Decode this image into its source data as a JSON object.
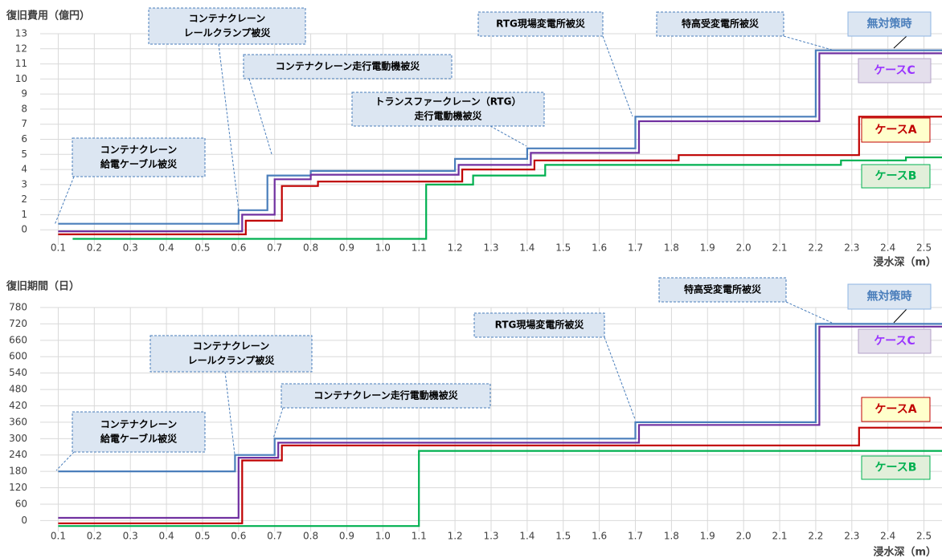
{
  "chart_data": [
    {
      "type": "line",
      "title": "復旧費用（億円）",
      "xlabel": "浸水深（m）",
      "xlim": [
        0.05,
        2.55
      ],
      "ylim": [
        -1,
        13
      ],
      "grid": true,
      "xticks": [
        0.1,
        0.2,
        0.3,
        0.4,
        0.5,
        0.6,
        0.7,
        0.8,
        0.9,
        {
          "value": 1,
          "label": "1.0"
        },
        1.1,
        1.2,
        1.3,
        1.4,
        1.5,
        1.6,
        1.7,
        1.8,
        1.9,
        {
          "value": 2,
          "label": "2.0"
        },
        2.1,
        2.2,
        2.3,
        2.4,
        2.5
      ],
      "yticks": [
        0,
        1,
        2,
        3,
        4,
        5,
        6,
        7,
        8,
        9,
        10,
        11,
        12,
        13
      ],
      "series": [
        {
          "name": "無対策時",
          "color": "#4a7ebb",
          "x": [
            0.1,
            0.6,
            0.6,
            0.68,
            0.68,
            0.8,
            0.8,
            1.2,
            1.2,
            1.4,
            1.4,
            1.7,
            1.7,
            2.2,
            2.2,
            2.55
          ],
          "values": [
            0.4,
            0.4,
            1.3,
            1.3,
            3.6,
            3.6,
            3.9,
            3.9,
            4.7,
            4.7,
            5.4,
            5.4,
            7.5,
            7.5,
            11.9,
            11.9
          ]
        },
        {
          "name": "ケースC",
          "color": "#7030a0",
          "x": [
            0.1,
            0.61,
            0.61,
            0.7,
            0.7,
            0.8,
            0.8,
            1.21,
            1.21,
            1.41,
            1.41,
            1.71,
            1.71,
            2.21,
            2.21,
            2.55
          ],
          "values": [
            -0.1,
            -0.1,
            1.0,
            1.0,
            3.35,
            3.35,
            3.65,
            3.65,
            4.3,
            4.3,
            5.1,
            5.1,
            7.2,
            7.2,
            11.7,
            11.7
          ]
        },
        {
          "name": "ケースA",
          "color": "#c00000",
          "x": [
            0.1,
            0.62,
            0.62,
            0.72,
            0.72,
            0.82,
            0.82,
            1.22,
            1.22,
            1.42,
            1.42,
            1.82,
            1.82,
            2.32,
            2.32,
            2.55
          ],
          "values": [
            -0.3,
            -0.3,
            0.6,
            0.6,
            2.9,
            2.9,
            3.2,
            3.2,
            4.0,
            4.0,
            4.6,
            4.6,
            4.95,
            4.95,
            7.5,
            7.5
          ]
        },
        {
          "name": "ケースB",
          "color": "#00b050",
          "x": [
            0.14,
            1.12,
            1.12,
            1.25,
            1.25,
            1.45,
            1.45,
            2.27,
            2.27,
            2.45,
            2.45,
            2.55
          ],
          "values": [
            -0.6,
            -0.6,
            3.0,
            3.0,
            3.6,
            3.6,
            4.3,
            4.3,
            4.6,
            4.6,
            4.8,
            4.8
          ]
        }
      ],
      "annotations": [
        {
          "lines": [
            "コンテナクレーン",
            "給電ケーブル被災"
          ]
        },
        {
          "lines": [
            "コンテナクレーン",
            "レールクランプ被災"
          ]
        },
        {
          "lines": [
            "コンテナクレーン走行電動機被災"
          ]
        },
        {
          "lines": [
            "トランスファークレーン（RTG）",
            "走行電動機被災"
          ]
        },
        {
          "lines": [
            "RTG現場変電所被災"
          ]
        },
        {
          "lines": [
            "特高受変電所被災"
          ]
        }
      ]
    },
    {
      "type": "line",
      "title": "復旧期間（日）",
      "xlabel": "浸水深（m）",
      "xlim": [
        0.05,
        2.55
      ],
      "ylim": [
        -40,
        780
      ],
      "grid": true,
      "xticks": [
        0.1,
        0.2,
        0.3,
        0.4,
        0.5,
        0.6,
        0.7,
        0.8,
        0.9,
        {
          "value": 1,
          "label": "1.0"
        },
        1.1,
        1.2,
        1.3,
        1.4,
        1.5,
        1.6,
        1.7,
        1.8,
        1.9,
        {
          "value": 2,
          "label": "2.0"
        },
        2.1,
        2.2,
        2.3,
        2.4,
        2.5
      ],
      "yticks": [
        0,
        60,
        120,
        180,
        240,
        300,
        360,
        420,
        480,
        540,
        600,
        660,
        720,
        780
      ],
      "series": [
        {
          "name": "無対策時",
          "color": "#4a7ebb",
          "x": [
            0.1,
            0.59,
            0.59,
            0.7,
            0.7,
            1.7,
            1.7,
            2.2,
            2.2,
            2.55
          ],
          "values": [
            180,
            180,
            240,
            240,
            300,
            300,
            360,
            360,
            720,
            720
          ]
        },
        {
          "name": "ケースC",
          "color": "#7030a0",
          "x": [
            0.1,
            0.6,
            0.6,
            0.71,
            0.71,
            1.71,
            1.71,
            2.21,
            2.21,
            2.55
          ],
          "values": [
            10,
            10,
            230,
            230,
            285,
            285,
            350,
            350,
            710,
            710
          ]
        },
        {
          "name": "ケースA",
          "color": "#c00000",
          "x": [
            0.1,
            0.61,
            0.61,
            0.72,
            0.72,
            2.32,
            2.32,
            2.55
          ],
          "values": [
            -10,
            -10,
            220,
            220,
            275,
            275,
            340,
            340
          ]
        },
        {
          "name": "ケースB",
          "color": "#00b050",
          "x": [
            0.1,
            1.1,
            1.1,
            2.55
          ],
          "values": [
            -20,
            -20,
            255,
            255
          ]
        }
      ],
      "annotations": [
        {
          "lines": [
            "コンテナクレーン",
            "給電ケーブル被災"
          ]
        },
        {
          "lines": [
            "コンテナクレーン",
            "レールクランプ被災"
          ]
        },
        {
          "lines": [
            "コンテナクレーン走行電動機被災"
          ]
        },
        {
          "lines": [
            "RTG現場変電所被災"
          ]
        },
        {
          "lines": [
            "特高受変電所被災"
          ]
        }
      ]
    }
  ]
}
